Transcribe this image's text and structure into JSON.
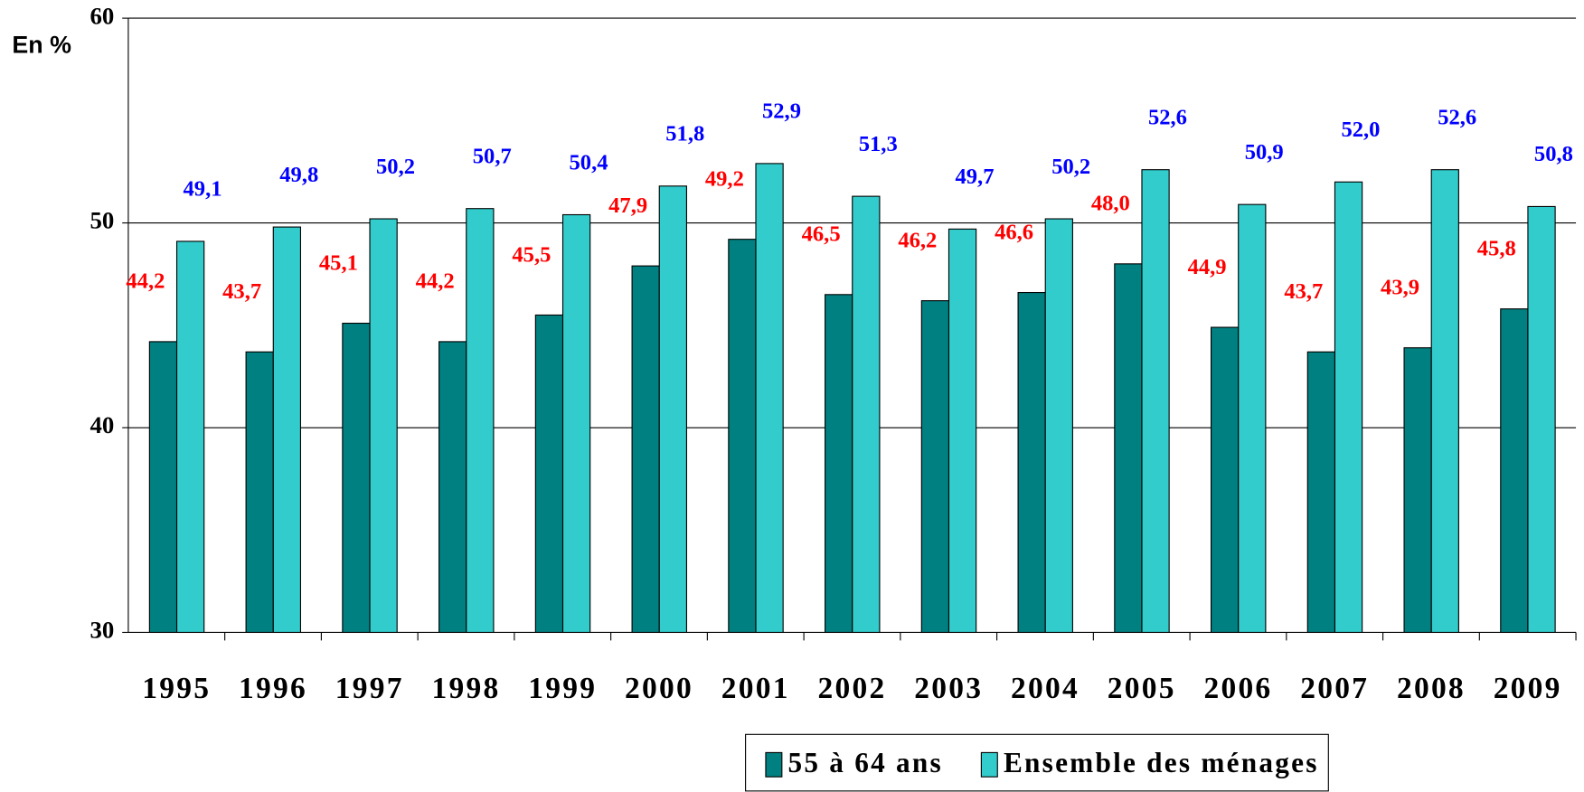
{
  "chart_data": {
    "type": "bar",
    "y_unit": "En %",
    "categories": [
      "1995",
      "1996",
      "1997",
      "1998",
      "1999",
      "2000",
      "2001",
      "2002",
      "2003",
      "2004",
      "2005",
      "2006",
      "2007",
      "2008",
      "2009"
    ],
    "series": [
      {
        "name": "55 à 64 ans",
        "color": "#008080",
        "label_color": "#ff0000",
        "values": [
          44.2,
          43.7,
          45.1,
          44.2,
          45.5,
          47.9,
          49.2,
          46.5,
          46.2,
          46.6,
          48.0,
          44.9,
          43.7,
          43.9,
          45.8
        ],
        "value_labels": [
          "44,2",
          "43,7",
          "45,1",
          "44,2",
          "45,5",
          "47,9",
          "49,2",
          "46,5",
          "46,2",
          "46,6",
          "48,0",
          "44,9",
          "43,7",
          "43,9",
          "45,8"
        ]
      },
      {
        "name": "Ensemble des ménages",
        "color": "#33cccc",
        "label_color": "#0000ff",
        "values": [
          49.1,
          49.8,
          50.2,
          50.7,
          50.4,
          51.8,
          52.9,
          51.3,
          49.7,
          50.2,
          52.6,
          50.9,
          52.0,
          52.6,
          50.8
        ],
        "value_labels": [
          "49,1",
          "49,8",
          "50,2",
          "50,7",
          "50,4",
          "51,8",
          "52,9",
          "51,3",
          "49,7",
          "50,2",
          "52,6",
          "50,9",
          "52,0",
          "52,6",
          "50,8"
        ]
      }
    ],
    "ylim": [
      30,
      60
    ],
    "yticks": [
      30,
      40,
      50,
      60
    ],
    "grid": true
  }
}
